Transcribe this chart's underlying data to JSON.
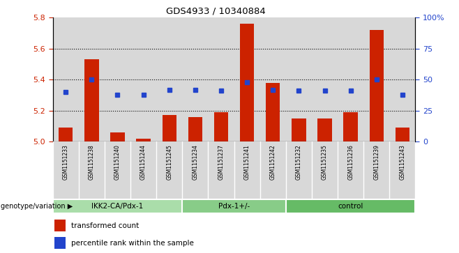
{
  "title": "GDS4933 / 10340884",
  "samples": [
    "GSM1151233",
    "GSM1151238",
    "GSM1151240",
    "GSM1151244",
    "GSM1151245",
    "GSM1151234",
    "GSM1151237",
    "GSM1151241",
    "GSM1151242",
    "GSM1151232",
    "GSM1151235",
    "GSM1151236",
    "GSM1151239",
    "GSM1151243"
  ],
  "red_values": [
    5.09,
    5.53,
    5.06,
    5.02,
    5.17,
    5.16,
    5.19,
    5.76,
    5.38,
    5.15,
    5.15,
    5.19,
    5.72,
    5.09
  ],
  "blue_values": [
    40,
    50,
    38,
    38,
    42,
    42,
    41,
    48,
    42,
    41,
    41,
    41,
    50,
    38
  ],
  "groups": [
    {
      "label": "IKK2-CA/Pdx-1",
      "start": 0,
      "end": 5,
      "color": "#aaddaa"
    },
    {
      "label": "Pdx-1+/-",
      "start": 5,
      "end": 9,
      "color": "#88cc88"
    },
    {
      "label": "control",
      "start": 9,
      "end": 14,
      "color": "#66bb66"
    }
  ],
  "ylim_left": [
    5.0,
    5.8
  ],
  "ylim_right": [
    0,
    100
  ],
  "yticks_left": [
    5.0,
    5.2,
    5.4,
    5.6,
    5.8
  ],
  "yticks_right": [
    0,
    25,
    50,
    75,
    100
  ],
  "red_color": "#cc2200",
  "blue_color": "#2244cc",
  "bar_width": 0.55,
  "plot_bg_color": "#ffffff",
  "sample_bg_color": "#d8d8d8",
  "legend_red": "transformed count",
  "legend_blue": "percentile rank within the sample",
  "genotype_label": "genotype/variation",
  "tick_color_left": "#cc2200",
  "tick_color_right": "#2244cc"
}
